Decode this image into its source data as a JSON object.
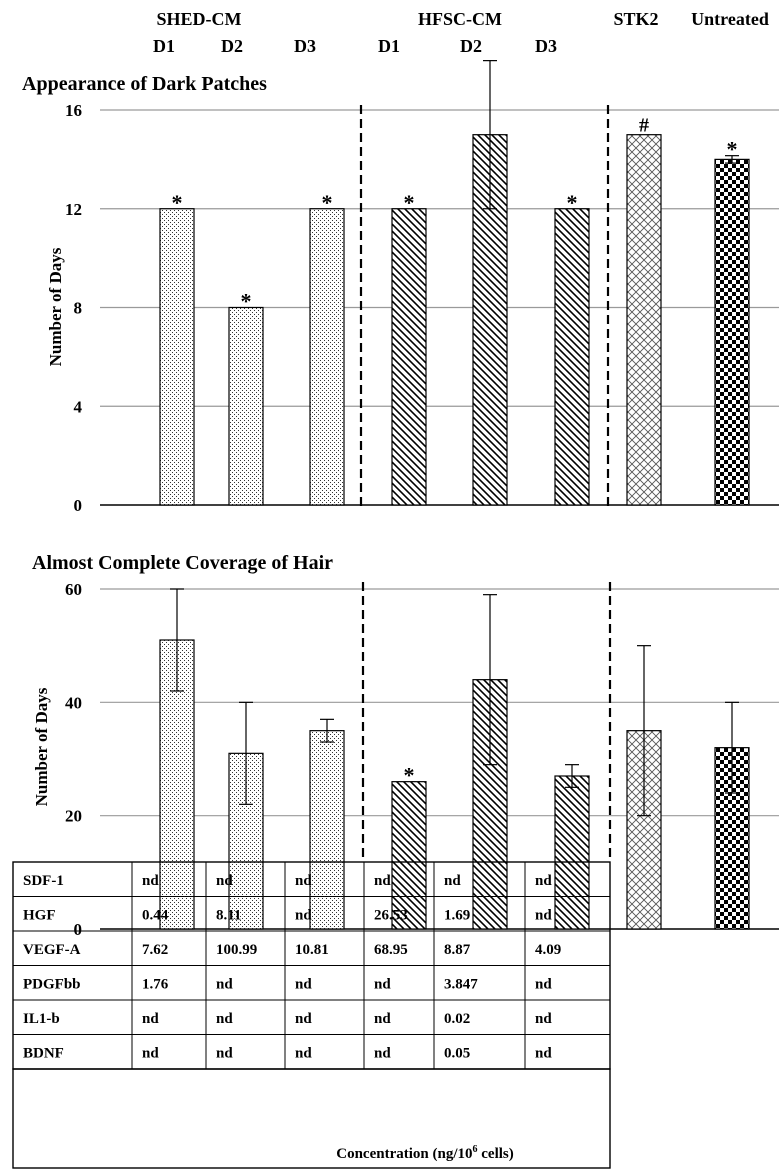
{
  "header": {
    "groups": [
      "SHED-CM",
      "HFSC-CM",
      "STK2",
      "Untreated"
    ],
    "subcats": [
      "D1",
      "D2",
      "D3",
      "D1",
      "D2",
      "D3"
    ]
  },
  "colors": {
    "grid": "#9a9a9a",
    "bar_stroke": "#000000",
    "divider": "#000000"
  },
  "chart_data": [
    {
      "type": "bar",
      "title": "Appearance of Dark Patches",
      "ylabel": "Number of Days",
      "ylim": [
        0,
        16
      ],
      "yticks": [
        0,
        4,
        8,
        12,
        16
      ],
      "grid": true,
      "categories": [
        "SHED-CM D1",
        "SHED-CM D2",
        "SHED-CM D3",
        "HFSC-CM D1",
        "HFSC-CM D2",
        "HFSC-CM D3",
        "STK2",
        "Untreated"
      ],
      "values": [
        12,
        8,
        12,
        12,
        15,
        12,
        15,
        14
      ],
      "errors": [
        0,
        0,
        0,
        0,
        3,
        0,
        0,
        0.15
      ],
      "annotations": [
        "*",
        "*",
        "*",
        "*",
        "",
        "*",
        "#",
        "*"
      ],
      "patterns": [
        "dots",
        "dots",
        "dots",
        "diag",
        "diag",
        "diag",
        "cross",
        "check"
      ]
    },
    {
      "type": "bar",
      "title": "Almost Complete Coverage of Hair",
      "ylabel": "Number of Days",
      "ylim": [
        0,
        60
      ],
      "yticks": [
        0,
        20,
        40,
        60
      ],
      "grid": true,
      "categories": [
        "SHED-CM D1",
        "SHED-CM D2",
        "SHED-CM D3",
        "HFSC-CM D1",
        "HFSC-CM D2",
        "HFSC-CM D3",
        "STK2",
        "Untreated"
      ],
      "values": [
        51,
        31,
        35,
        26,
        44,
        27,
        35,
        32
      ],
      "errors": [
        9,
        9,
        2,
        0,
        15,
        2,
        15,
        8
      ],
      "annotations": [
        "",
        "",
        "",
        "*",
        "",
        "",
        "",
        ""
      ],
      "patterns": [
        "dots",
        "dots",
        "dots",
        "diag",
        "diag",
        "diag",
        "cross",
        "check"
      ]
    }
  ],
  "table": {
    "rows": [
      [
        "SDF-1",
        "nd",
        "nd",
        "nd",
        "nd",
        "nd",
        "nd"
      ],
      [
        "HGF",
        "0.44",
        "8.11",
        "nd",
        "26.53",
        "1.69",
        "nd"
      ],
      [
        "VEGF-A",
        "7.62",
        "100.99",
        "10.81",
        "68.95",
        "8.87",
        "4.09"
      ],
      [
        "PDGFbb",
        "1.76",
        "nd",
        "nd",
        "nd",
        "3.847",
        "nd"
      ],
      [
        "IL1-b",
        "nd",
        "nd",
        "nd",
        "nd",
        "0.02",
        "nd"
      ],
      [
        "BDNF",
        "nd",
        "nd",
        "nd",
        "nd",
        "0.05",
        "nd"
      ]
    ],
    "footer": "Concentration (ng/10",
    "footer_sup": "6",
    "footer_tail": " cells)"
  }
}
